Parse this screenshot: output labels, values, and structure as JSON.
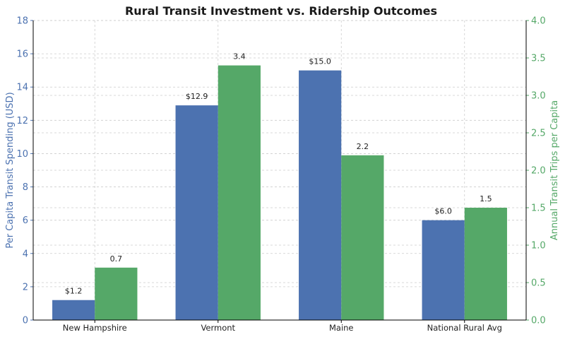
{
  "chart_data": {
    "type": "bar",
    "title": "Rural Transit Investment vs. Ridership Outcomes",
    "categories": [
      "New Hampshire",
      "Vermont",
      "Maine",
      "National Rural Avg"
    ],
    "series": [
      {
        "values": [
          1.2,
          12.9,
          15.0,
          6.0
        ],
        "labels": [
          "$1.2",
          "$12.9",
          "$15.0",
          "$6.0"
        ],
        "color": "#4c72b0",
        "axis": "left"
      },
      {
        "values": [
          0.7,
          3.4,
          2.2,
          1.5
        ],
        "labels": [
          "0.7",
          "3.4",
          "2.2",
          "1.5"
        ],
        "color": "#55a868",
        "axis": "right"
      }
    ],
    "ylabel_left": "Per Capita Transit Spending (USD)",
    "ylabel_right": "Annual Transit Trips per Capita",
    "ylim_left": [
      0,
      18
    ],
    "ylim_right": [
      0,
      4.0
    ],
    "yticks_left": [
      "0",
      "2",
      "4",
      "6",
      "8",
      "10",
      "12",
      "14",
      "16",
      "18"
    ],
    "yticks_right": [
      "0.0",
      "0.5",
      "1.0",
      "1.5",
      "2.0",
      "2.5",
      "3.0",
      "3.5",
      "4.0"
    ],
    "left_axis_color": "#4c72b0",
    "right_axis_color": "#55a868",
    "grid": true
  }
}
